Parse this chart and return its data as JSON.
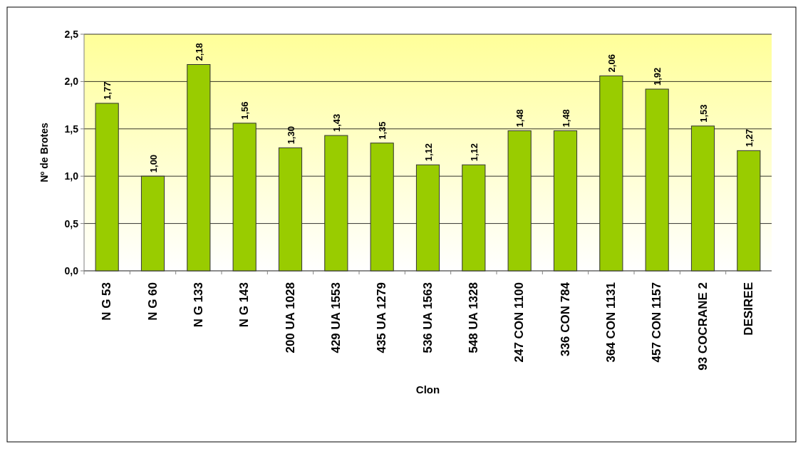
{
  "chart_data": {
    "type": "bar",
    "xlabel": "Clon",
    "ylabel": "Nº de Brotes",
    "categories": [
      "N G 53",
      "N G 60",
      "N G 133",
      "N G 143",
      "200 UA 1028",
      "429 UA 1553",
      "435 UA 1279",
      "536 UA 1563",
      "548 UA 1328",
      "247 CON 1100",
      "336 CON 784",
      "364 CON 1131",
      "457 CON 1157",
      "93 COCRANE 2",
      "DESIREE"
    ],
    "values": [
      1.77,
      1.0,
      2.18,
      1.56,
      1.3,
      1.43,
      1.35,
      1.12,
      1.12,
      1.48,
      1.48,
      2.06,
      1.92,
      1.53,
      1.27
    ],
    "value_labels": [
      "1,77",
      "1,00",
      "2,18",
      "1,56",
      "1,30",
      "1,43",
      "1,35",
      "1,12",
      "1,12",
      "1,48",
      "1,48",
      "2,06",
      "1,92",
      "1,53",
      "1,27"
    ],
    "color": "#99cc00",
    "ylim": [
      0,
      2.5
    ],
    "yticks": [
      {
        "value": 0,
        "label": "0,0"
      },
      {
        "value": 0.5,
        "label": "0,5"
      },
      {
        "value": 1,
        "label": "1,0"
      },
      {
        "value": 1.5,
        "label": "1,5"
      },
      {
        "value": 2,
        "label": "2,0"
      },
      {
        "value": 2.5,
        "label": "2,5"
      }
    ],
    "grid": "y"
  }
}
